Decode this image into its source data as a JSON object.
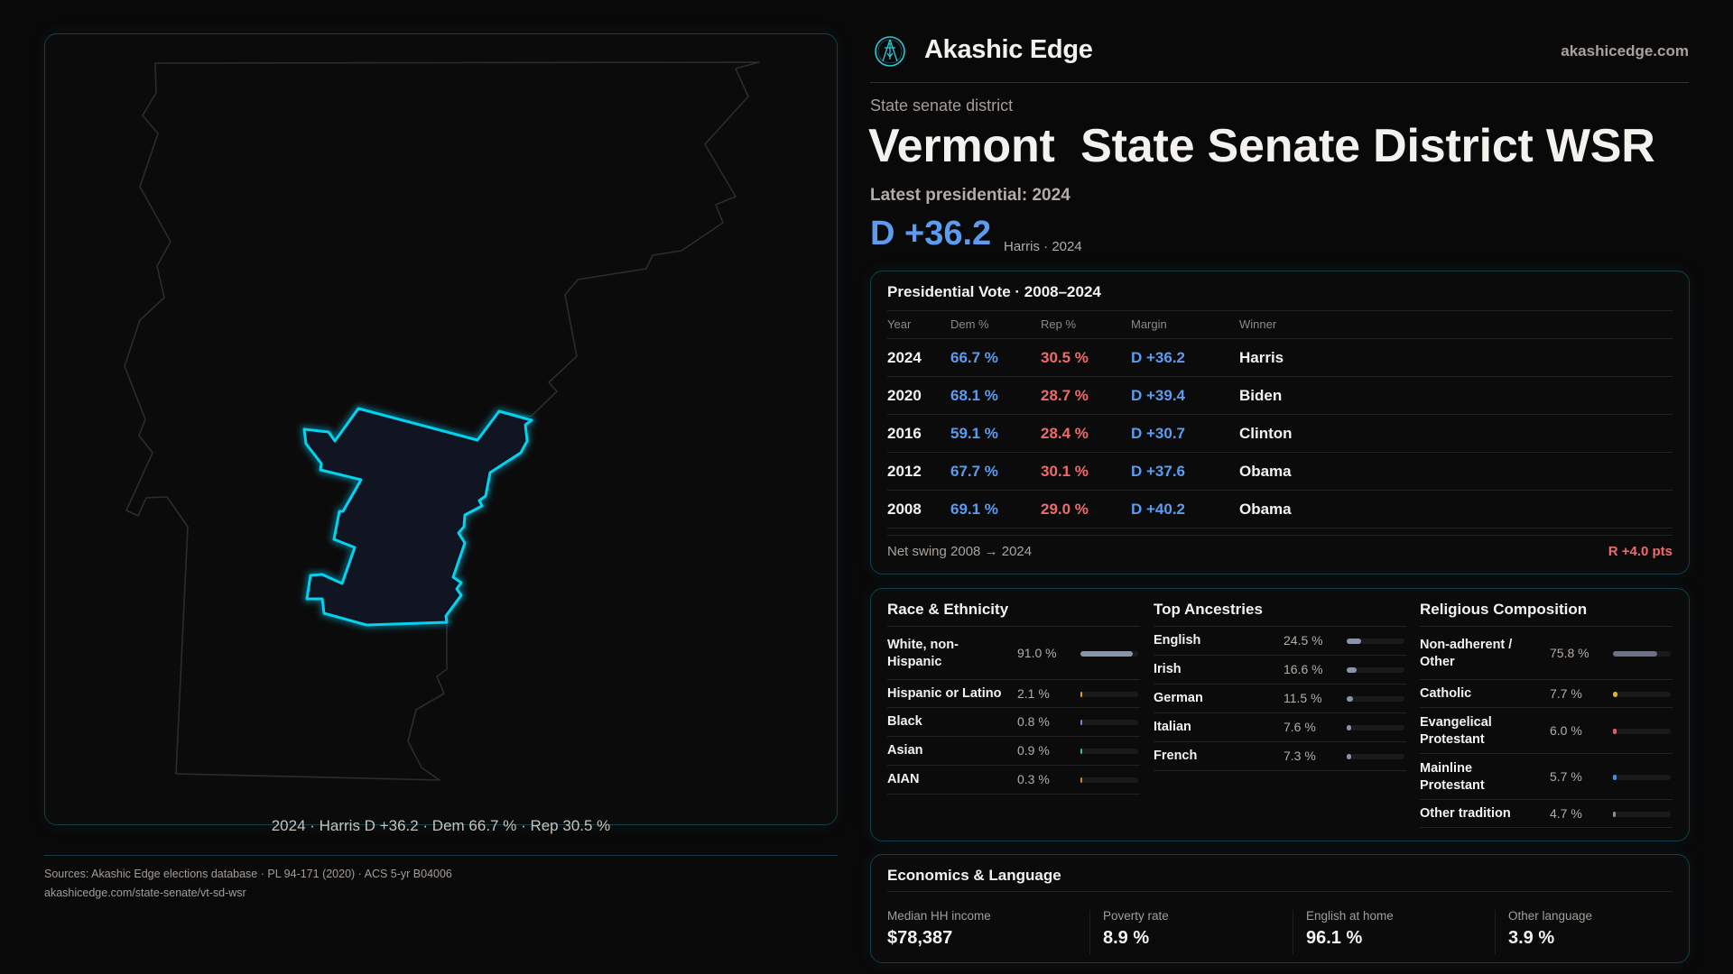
{
  "brand": {
    "name": "Akashic Edge",
    "site": "akashicedge.com",
    "logo_icon": "akashic-compass-logo-icon"
  },
  "header": {
    "kicker": "State senate district",
    "title": "Vermont  State Senate District WSR",
    "latest": "Latest presidential: 2024",
    "margin": "D +36.2",
    "margin_sub": "Harris · 2024"
  },
  "map": {
    "caption": "2024 · Harris D +36.2 · Dem 66.7 % · Rep 30.5 %",
    "highlight_color": "#00d4f0"
  },
  "presidential": {
    "title": "Presidential Vote · 2008–2024",
    "columns": [
      "Year",
      "Dem %",
      "Rep %",
      "Margin",
      "Winner"
    ],
    "rows": [
      {
        "year": "2024",
        "dem": "66.7 %",
        "rep": "30.5 %",
        "margin": "D +36.2",
        "winner": "Harris"
      },
      {
        "year": "2020",
        "dem": "68.1 %",
        "rep": "28.7 %",
        "margin": "D +39.4",
        "winner": "Biden"
      },
      {
        "year": "2016",
        "dem": "59.1 %",
        "rep": "28.4 %",
        "margin": "D +30.7",
        "winner": "Clinton"
      },
      {
        "year": "2012",
        "dem": "67.7 %",
        "rep": "30.1 %",
        "margin": "D +37.6",
        "winner": "Obama"
      },
      {
        "year": "2008",
        "dem": "69.1 %",
        "rep": "29.0 %",
        "margin": "D +40.2",
        "winner": "Obama"
      }
    ],
    "swing_label": "Net swing 2008 → 2024",
    "swing_value": "R +4.0 pts"
  },
  "demographics": [
    {
      "title": "Race & Ethnicity",
      "items": [
        {
          "label": "White, non-Hispanic",
          "value": "91.0 %",
          "pct": 91.0,
          "color": "#8a94a8"
        },
        {
          "label": "Hispanic or Latino",
          "value": "2.1 %",
          "pct": 2.1,
          "color": "#e0a030"
        },
        {
          "label": "Black",
          "value": "0.8 %",
          "pct": 0.8,
          "color": "#8a7adf"
        },
        {
          "label": "Asian",
          "value": "0.9 %",
          "pct": 0.9,
          "color": "#3fbf8f"
        },
        {
          "label": "AIAN",
          "value": "0.3 %",
          "pct": 0.3,
          "color": "#d08030"
        }
      ]
    },
    {
      "title": "Top Ancestries",
      "items": [
        {
          "label": "English",
          "value": "24.5 %",
          "pct": 24.5,
          "color": "#8a94a8"
        },
        {
          "label": "Irish",
          "value": "16.6 %",
          "pct": 16.6,
          "color": "#8a94a8"
        },
        {
          "label": "German",
          "value": "11.5 %",
          "pct": 11.5,
          "color": "#8a94a8"
        },
        {
          "label": "Italian",
          "value": "7.6 %",
          "pct": 7.6,
          "color": "#8a94a8"
        },
        {
          "label": "French",
          "value": "7.3 %",
          "pct": 7.3,
          "color": "#8a94a8"
        }
      ]
    },
    {
      "title": "Religious Composition",
      "items": [
        {
          "label": "Non-adherent / Other",
          "value": "75.8 %",
          "pct": 75.8,
          "color": "#6b7180"
        },
        {
          "label": "Catholic",
          "value": "7.7 %",
          "pct": 7.7,
          "color": "#e0b030"
        },
        {
          "label": "Evangelical Protestant",
          "value": "6.0 %",
          "pct": 6.0,
          "color": "#e06060"
        },
        {
          "label": "Mainline Protestant",
          "value": "5.7 %",
          "pct": 5.7,
          "color": "#4a8ae0"
        },
        {
          "label": "Other tradition",
          "value": "4.7 %",
          "pct": 4.7,
          "color": "#8890a0"
        }
      ]
    }
  ],
  "economics": {
    "title": "Economics & Language",
    "stats": [
      {
        "label": "Median HH income",
        "value": "$78,387"
      },
      {
        "label": "Poverty rate",
        "value": "8.9 %"
      },
      {
        "label": "English at home",
        "value": "96.1 %"
      },
      {
        "label": "Other language",
        "value": "3.9 %"
      }
    ]
  },
  "footer": {
    "sources": "Sources: Akashic Edge elections database · PL 94-171 (2020) · ACS 5-yr B04006",
    "url": "akashicedge.com/state-senate/vt-sd-wsr"
  }
}
